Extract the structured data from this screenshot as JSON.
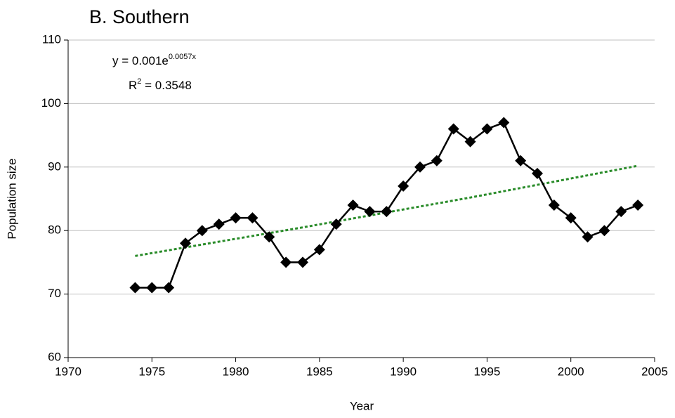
{
  "chart_data": {
    "type": "line",
    "title": "B. Southern",
    "xlabel": "Year",
    "ylabel": "Population size",
    "x": [
      1974,
      1975,
      1976,
      1977,
      1978,
      1979,
      1980,
      1981,
      1982,
      1983,
      1984,
      1985,
      1986,
      1987,
      1988,
      1989,
      1990,
      1991,
      1992,
      1993,
      1994,
      1995,
      1996,
      1997,
      1998,
      1999,
      2000,
      2001,
      2002,
      2003,
      2004
    ],
    "series": [
      {
        "color": "#000000",
        "values": [
          71,
          71,
          71,
          78,
          80,
          81,
          82,
          82,
          79,
          75,
          75,
          77,
          81,
          84,
          83,
          83,
          87,
          90,
          91,
          96,
          94,
          96,
          97,
          91,
          89,
          84,
          82,
          79,
          80,
          83,
          84
        ]
      }
    ],
    "trendline": {
      "color": "#2a8c2a",
      "x": [
        1974,
        1984,
        1994,
        2004
      ],
      "values": [
        76,
        80.5,
        85.2,
        90.2
      ]
    },
    "equation": {
      "text": "y = 0.001e",
      "sup": "0.0057x"
    },
    "r_squared": {
      "text": "R",
      "sup": "2",
      "rest": " = 0.3548"
    },
    "xlim": [
      1970,
      2005
    ],
    "xticks": [
      1970,
      1975,
      1980,
      1985,
      1990,
      1995,
      2000,
      2005
    ],
    "ylim": [
      60,
      110
    ],
    "yticks": [
      60,
      70,
      80,
      90,
      100,
      110
    ],
    "grid": true
  }
}
